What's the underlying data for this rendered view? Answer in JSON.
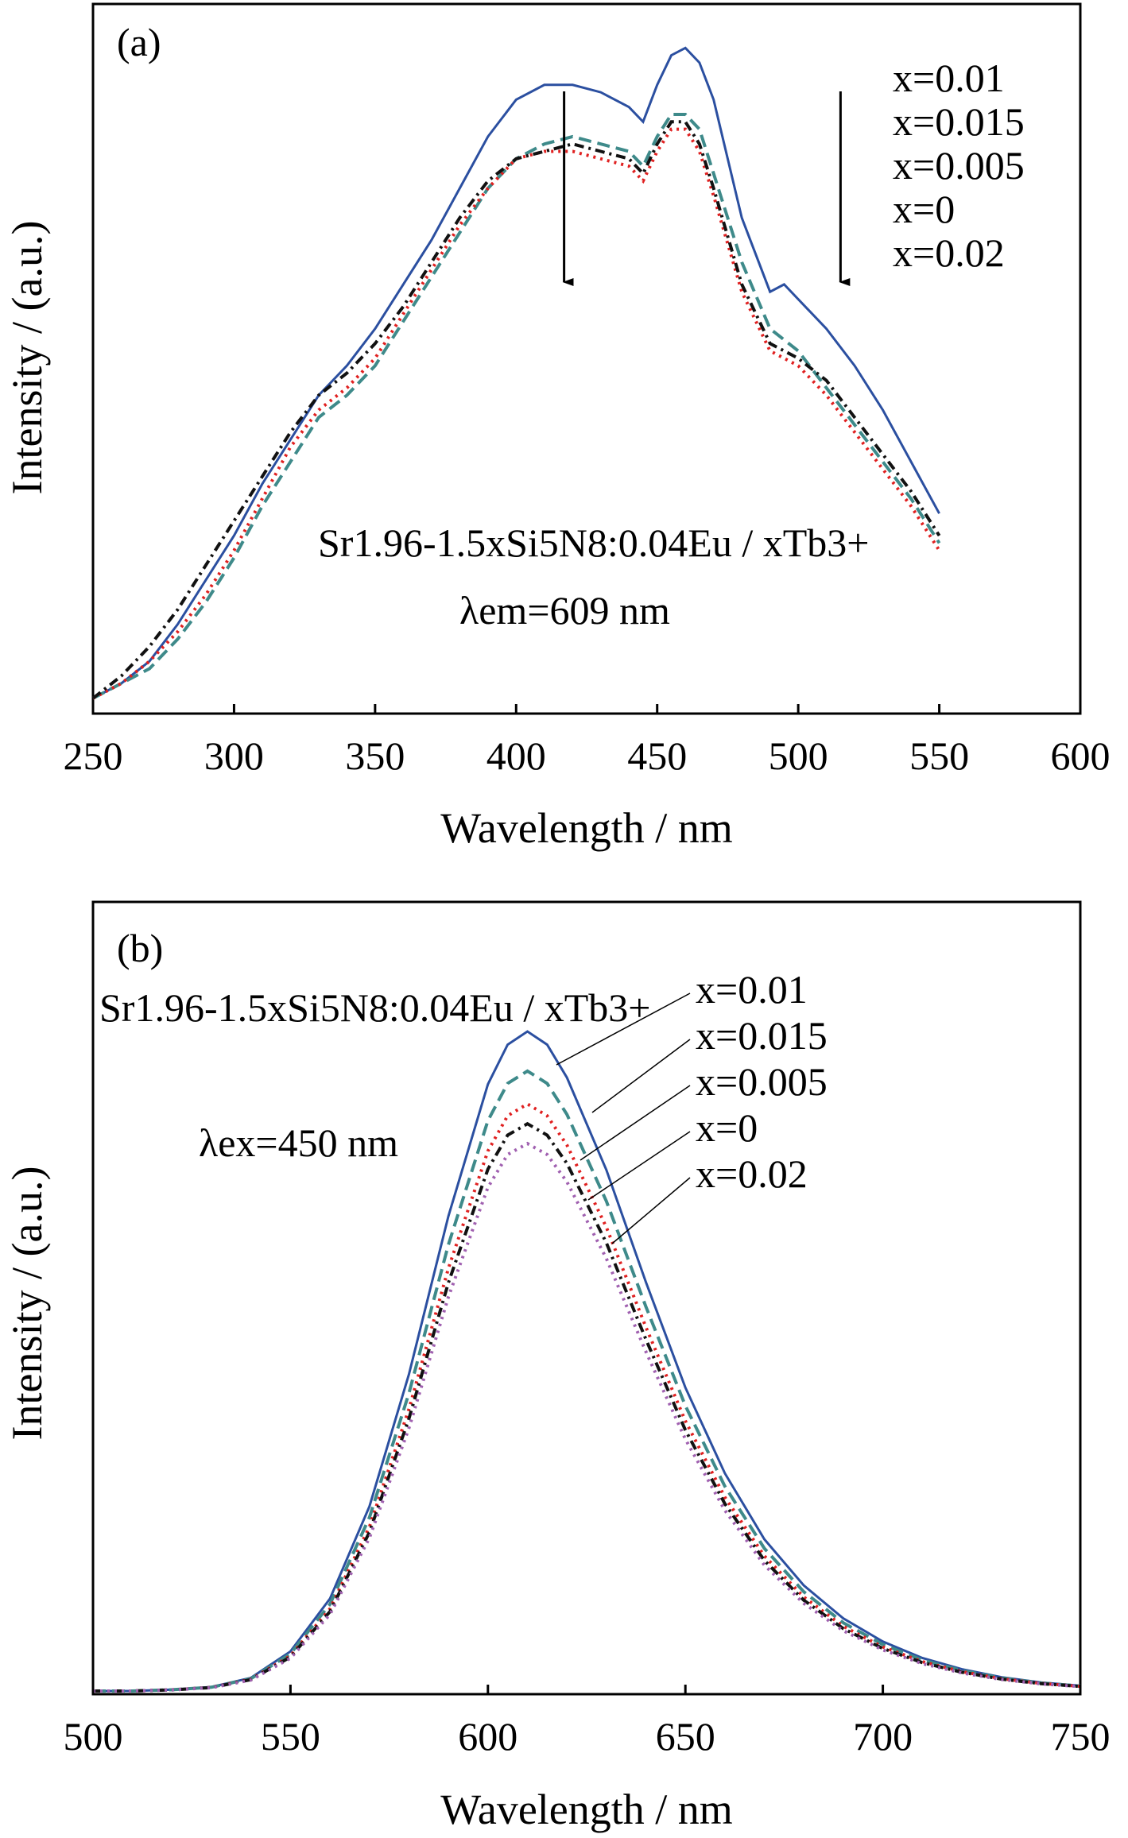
{
  "chart_data": [
    {
      "panel_label": "(a)",
      "type": "line",
      "xlabel": "Wavelength / nm",
      "ylabel": "Intensity / (a.u.)",
      "xlim": [
        250,
        600
      ],
      "xticks": [
        "250",
        "300",
        "350",
        "400",
        "450",
        "500",
        "550",
        "600"
      ],
      "yticks": [],
      "annotation": {
        "formula": "Sr1.96-1.5xSi5N8:0.04Eu / xTb3+",
        "condition": "λem=609 nm"
      },
      "legend_placement": "top-right",
      "legend": [
        "x=0.01",
        "x=0.015",
        "x=0.005",
        "x=0",
        "x=0.02"
      ],
      "arrows": [
        {
          "x": 417,
          "direction": "down"
        },
        {
          "x": 515,
          "direction": "down"
        }
      ],
      "series": [
        {
          "legend": "x=0.01",
          "color": "#2b4fa0",
          "style": "solid",
          "x": [
            250,
            260,
            270,
            280,
            290,
            300,
            310,
            320,
            330,
            340,
            350,
            360,
            370,
            380,
            390,
            400,
            410,
            420,
            430,
            440,
            445,
            450,
            455,
            460,
            465,
            470,
            480,
            490,
            495,
            500,
            510,
            520,
            530,
            540,
            550
          ],
          "y": [
            0.01,
            0.03,
            0.06,
            0.11,
            0.17,
            0.23,
            0.3,
            0.36,
            0.42,
            0.46,
            0.51,
            0.57,
            0.63,
            0.7,
            0.77,
            0.82,
            0.84,
            0.84,
            0.83,
            0.81,
            0.79,
            0.84,
            0.88,
            0.89,
            0.87,
            0.82,
            0.66,
            0.56,
            0.57,
            0.55,
            0.51,
            0.46,
            0.4,
            0.33,
            0.26
          ]
        },
        {
          "legend": "x=0.015",
          "color": "#3e8a8a",
          "style": "dashed",
          "x": [
            250,
            260,
            270,
            280,
            290,
            300,
            310,
            320,
            330,
            340,
            350,
            360,
            370,
            380,
            390,
            400,
            410,
            420,
            430,
            440,
            445,
            450,
            455,
            460,
            465,
            470,
            480,
            490,
            500,
            510,
            520,
            530,
            540,
            550
          ],
          "y": [
            0.01,
            0.03,
            0.05,
            0.09,
            0.14,
            0.2,
            0.27,
            0.33,
            0.39,
            0.42,
            0.46,
            0.52,
            0.58,
            0.64,
            0.7,
            0.74,
            0.76,
            0.77,
            0.76,
            0.75,
            0.73,
            0.77,
            0.8,
            0.8,
            0.78,
            0.72,
            0.6,
            0.51,
            0.48,
            0.43,
            0.38,
            0.33,
            0.28,
            0.22
          ]
        },
        {
          "legend": "x=0.005",
          "color": "#e02020",
          "style": "dotted",
          "x": [
            250,
            260,
            270,
            280,
            290,
            300,
            310,
            320,
            330,
            340,
            350,
            360,
            370,
            380,
            390,
            400,
            410,
            420,
            430,
            440,
            445,
            450,
            455,
            460,
            465,
            470,
            480,
            490,
            500,
            510,
            520,
            530,
            540,
            550
          ],
          "y": [
            0.01,
            0.03,
            0.06,
            0.1,
            0.15,
            0.21,
            0.28,
            0.35,
            0.4,
            0.43,
            0.47,
            0.53,
            0.59,
            0.65,
            0.7,
            0.74,
            0.75,
            0.75,
            0.74,
            0.73,
            0.71,
            0.75,
            0.78,
            0.78,
            0.75,
            0.69,
            0.56,
            0.48,
            0.46,
            0.42,
            0.37,
            0.32,
            0.27,
            0.21
          ]
        },
        {
          "legend": "x=0",
          "color": "#111111",
          "style": "dashdot",
          "x": [
            250,
            260,
            270,
            280,
            290,
            300,
            310,
            320,
            330,
            340,
            350,
            360,
            370,
            380,
            390,
            400,
            410,
            420,
            430,
            440,
            445,
            450,
            455,
            460,
            465,
            470,
            480,
            490,
            500,
            510,
            520,
            530,
            540,
            550
          ],
          "y": [
            0.01,
            0.04,
            0.08,
            0.13,
            0.19,
            0.25,
            0.31,
            0.37,
            0.42,
            0.45,
            0.49,
            0.54,
            0.6,
            0.66,
            0.71,
            0.74,
            0.75,
            0.76,
            0.75,
            0.74,
            0.72,
            0.76,
            0.79,
            0.79,
            0.76,
            0.7,
            0.57,
            0.49,
            0.47,
            0.44,
            0.39,
            0.34,
            0.29,
            0.23
          ]
        },
        {
          "legend": "x=0.02",
          "color": "#2b4fa0",
          "style": "hidden",
          "x": [],
          "y": []
        }
      ]
    },
    {
      "panel_label": "(b)",
      "type": "line",
      "xlabel": "Wavelength / nm",
      "ylabel": "Intensity / (a.u.)",
      "xlim": [
        500,
        750
      ],
      "xticks": [
        "500",
        "550",
        "600",
        "650",
        "700",
        "750"
      ],
      "yticks": [],
      "annotation": {
        "formula": "Sr1.96-1.5xSi5N8:0.04Eu / xTb3+",
        "condition": "λex=450 nm"
      },
      "legend_placement": "top-right",
      "legend": [
        "x=0.01",
        "x=0.015",
        "x=0.005",
        "x=0",
        "x=0.02"
      ],
      "series": [
        {
          "legend": "x=0.01",
          "color": "#2b4fa0",
          "style": "solid",
          "peak": 1.0
        },
        {
          "legend": "x=0.015",
          "color": "#3e8a8a",
          "style": "dashed",
          "peak": 0.94
        },
        {
          "legend": "x=0.005",
          "color": "#e02020",
          "style": "dotted",
          "peak": 0.89
        },
        {
          "legend": "x=0",
          "color": "#111111",
          "style": "dashdot",
          "peak": 0.86
        },
        {
          "legend": "x=0.02",
          "color": "#a060b0",
          "style": "dotted",
          "peak": 0.83
        }
      ],
      "x": [
        500,
        510,
        520,
        530,
        540,
        550,
        560,
        570,
        580,
        590,
        600,
        605,
        610,
        615,
        620,
        630,
        640,
        650,
        660,
        670,
        680,
        690,
        700,
        710,
        720,
        730,
        740,
        750
      ],
      "shape": [
        0.0,
        0.0,
        0.002,
        0.006,
        0.02,
        0.06,
        0.14,
        0.28,
        0.48,
        0.72,
        0.92,
        0.98,
        1.0,
        0.98,
        0.93,
        0.79,
        0.62,
        0.46,
        0.33,
        0.23,
        0.16,
        0.11,
        0.075,
        0.05,
        0.033,
        0.021,
        0.013,
        0.008
      ]
    }
  ]
}
